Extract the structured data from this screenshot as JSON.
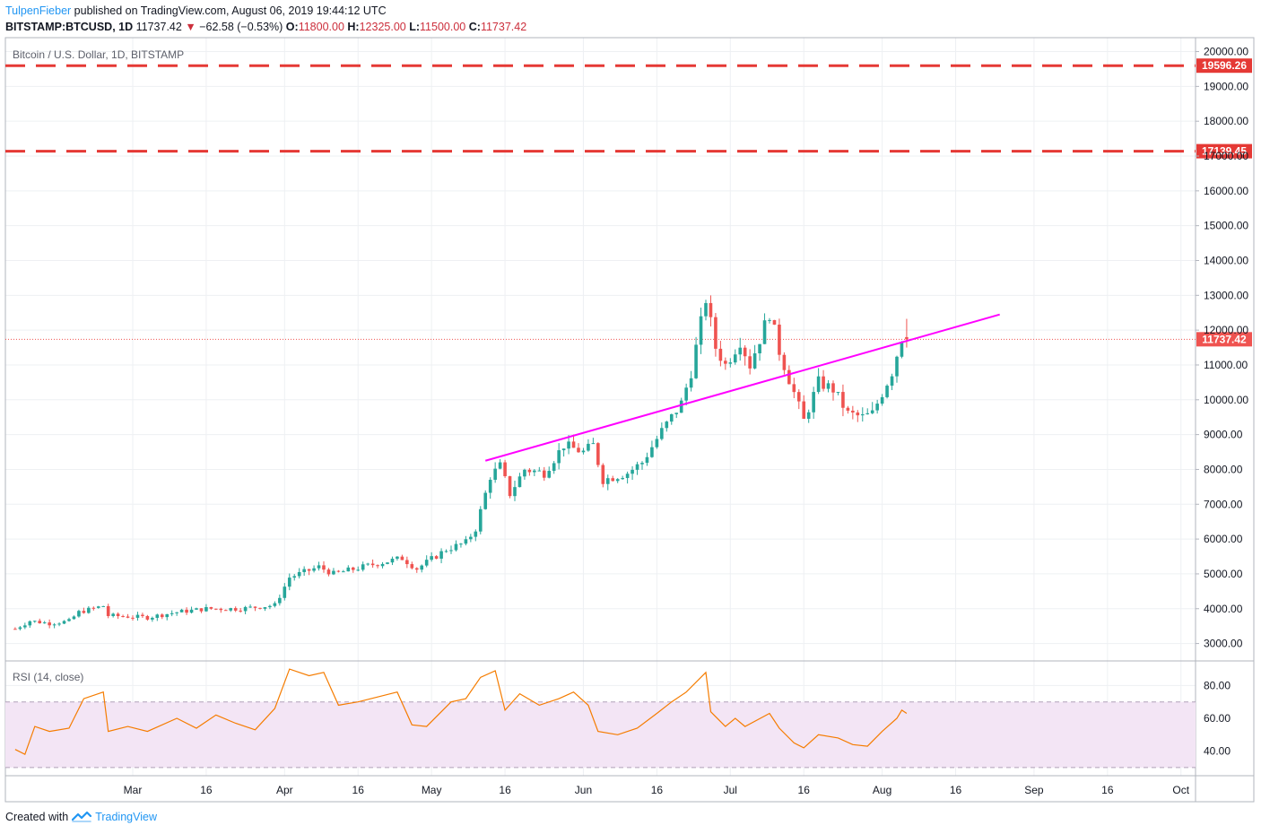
{
  "header": {
    "publisher": "TulpenFieber",
    "published_text": "published on TradingView.com, August 06, 2019 19:44:12 UTC",
    "symbol": "BITSTAMP:BTCUSD, 1D",
    "last": "11737.42",
    "change": "−62.58 (−0.53%)",
    "o_label": "O:",
    "o_val": "11800.00",
    "h_label": "H:",
    "h_val": "12325.00",
    "l_label": "L:",
    "l_val": "11500.00",
    "c_label": "C:",
    "c_val": "11737.42"
  },
  "footer": {
    "created_with": "Created with",
    "brand": "TradingView"
  },
  "colors": {
    "up": "#26a69a",
    "down": "#ef5350",
    "trend": "#ff00ff",
    "hline": "#e53935",
    "rsi": "#f57c00",
    "rsi_band": "#f3e5f5",
    "last_price": "#ef5350"
  },
  "chart_data": {
    "type": "candlestick",
    "title": "Bitcoin / U.S. Dollar, 1D, BITSTAMP",
    "x_ticks": [
      "Mar",
      "16",
      "Apr",
      "16",
      "May",
      "16",
      "Jun",
      "16",
      "Jul",
      "16",
      "Aug",
      "16",
      "Sep",
      "16",
      "Oct"
    ],
    "x_tick_dates": [
      "2019-03-01",
      "2019-03-16",
      "2019-04-01",
      "2019-04-16",
      "2019-05-01",
      "2019-05-16",
      "2019-06-01",
      "2019-06-16",
      "2019-07-01",
      "2019-07-16",
      "2019-08-01",
      "2019-08-16",
      "2019-09-01",
      "2019-09-16",
      "2019-10-01"
    ],
    "y_ticks": [
      "3000.00",
      "4000.00",
      "5000.00",
      "6000.00",
      "7000.00",
      "8000.00",
      "9000.00",
      "10000.00",
      "11000.00",
      "12000.00",
      "13000.00",
      "14000.00",
      "15000.00",
      "16000.00",
      "17000.00",
      "18000.00",
      "19000.00",
      "20000.00"
    ],
    "y_range": [
      2500,
      20400
    ],
    "horizontal_lines": [
      {
        "value": 19596.26,
        "label": "19596.26"
      },
      {
        "value": 17139.45,
        "label": "17139.45"
      }
    ],
    "last_price": {
      "value": 11737.42,
      "label": "11737.42"
    },
    "trendline": {
      "start": [
        "2019-05-12",
        8250
      ],
      "end": [
        "2019-08-25",
        12450
      ]
    },
    "close_points": [
      [
        "2019-02-05",
        3420
      ],
      [
        "2019-02-08",
        3650
      ],
      [
        "2019-02-12",
        3580
      ],
      [
        "2019-02-16",
        3640
      ],
      [
        "2019-02-18",
        3900
      ],
      [
        "2019-02-23",
        4080
      ],
      [
        "2019-02-24",
        3800
      ],
      [
        "2019-03-04",
        3750
      ],
      [
        "2019-03-10",
        3900
      ],
      [
        "2019-03-16",
        4000
      ],
      [
        "2019-03-23",
        4000
      ],
      [
        "2019-03-30",
        4100
      ],
      [
        "2019-04-02",
        4900
      ],
      [
        "2019-04-08",
        5200
      ],
      [
        "2019-04-11",
        5000
      ],
      [
        "2019-04-20",
        5300
      ],
      [
        "2019-04-25",
        5450
      ],
      [
        "2019-04-28",
        5150
      ],
      [
        "2019-05-04",
        5700
      ],
      [
        "2019-05-08",
        5900
      ],
      [
        "2019-05-10",
        6300
      ],
      [
        "2019-05-13",
        7800
      ],
      [
        "2019-05-15",
        8100
      ],
      [
        "2019-05-17",
        7300
      ],
      [
        "2019-05-20",
        8000
      ],
      [
        "2019-05-24",
        7900
      ],
      [
        "2019-05-28",
        8700
      ],
      [
        "2019-06-01",
        8500
      ],
      [
        "2019-06-03",
        8700
      ],
      [
        "2019-06-05",
        7700
      ],
      [
        "2019-06-10",
        7900
      ],
      [
        "2019-06-13",
        8200
      ],
      [
        "2019-06-17",
        9100
      ],
      [
        "2019-06-21",
        9900
      ],
      [
        "2019-06-23",
        10800
      ],
      [
        "2019-06-26",
        12900
      ],
      [
        "2019-06-28",
        11500
      ],
      [
        "2019-06-30",
        11000
      ],
      [
        "2019-07-03",
        11700
      ],
      [
        "2019-07-05",
        11000
      ],
      [
        "2019-07-09",
        12500
      ],
      [
        "2019-07-11",
        11400
      ],
      [
        "2019-07-14",
        10200
      ],
      [
        "2019-07-16",
        9400
      ],
      [
        "2019-07-19",
        10500
      ],
      [
        "2019-07-22",
        10300
      ],
      [
        "2019-07-25",
        9600
      ],
      [
        "2019-07-28",
        9500
      ],
      [
        "2019-07-30",
        9600
      ],
      [
        "2019-08-03",
        10800
      ],
      [
        "2019-08-05",
        11800
      ],
      [
        "2019-08-06",
        11737
      ]
    ],
    "rsi": {
      "label": "RSI (14, close)",
      "y_ticks": [
        "40.00",
        "60.00",
        "80.00"
      ],
      "y_range": [
        25,
        95
      ],
      "band": [
        30,
        70
      ],
      "points": [
        [
          "2019-02-05",
          41
        ],
        [
          "2019-02-07",
          38
        ],
        [
          "2019-02-09",
          55
        ],
        [
          "2019-02-12",
          52
        ],
        [
          "2019-02-16",
          54
        ],
        [
          "2019-02-19",
          72
        ],
        [
          "2019-02-23",
          76
        ],
        [
          "2019-02-24",
          52
        ],
        [
          "2019-02-28",
          55
        ],
        [
          "2019-03-04",
          52
        ],
        [
          "2019-03-10",
          60
        ],
        [
          "2019-03-14",
          54
        ],
        [
          "2019-03-18",
          62
        ],
        [
          "2019-03-22",
          57
        ],
        [
          "2019-03-26",
          53
        ],
        [
          "2019-03-30",
          66
        ],
        [
          "2019-04-02",
          90
        ],
        [
          "2019-04-06",
          86
        ],
        [
          "2019-04-09",
          88
        ],
        [
          "2019-04-12",
          68
        ],
        [
          "2019-04-16",
          70
        ],
        [
          "2019-04-20",
          73
        ],
        [
          "2019-04-24",
          76
        ],
        [
          "2019-04-27",
          56
        ],
        [
          "2019-04-30",
          55
        ],
        [
          "2019-05-05",
          70
        ],
        [
          "2019-05-08",
          72
        ],
        [
          "2019-05-11",
          85
        ],
        [
          "2019-05-14",
          89
        ],
        [
          "2019-05-16",
          65
        ],
        [
          "2019-05-19",
          75
        ],
        [
          "2019-05-23",
          68
        ],
        [
          "2019-05-27",
          72
        ],
        [
          "2019-05-30",
          76
        ],
        [
          "2019-06-02",
          68
        ],
        [
          "2019-06-04",
          52
        ],
        [
          "2019-06-08",
          50
        ],
        [
          "2019-06-12",
          54
        ],
        [
          "2019-06-16",
          63
        ],
        [
          "2019-06-19",
          70
        ],
        [
          "2019-06-22",
          76
        ],
        [
          "2019-06-26",
          88
        ],
        [
          "2019-06-27",
          64
        ],
        [
          "2019-06-30",
          55
        ],
        [
          "2019-07-02",
          60
        ],
        [
          "2019-07-04",
          55
        ],
        [
          "2019-07-09",
          63
        ],
        [
          "2019-07-11",
          54
        ],
        [
          "2019-07-14",
          45
        ],
        [
          "2019-07-16",
          42
        ],
        [
          "2019-07-19",
          50
        ],
        [
          "2019-07-23",
          48
        ],
        [
          "2019-07-26",
          44
        ],
        [
          "2019-07-29",
          43
        ],
        [
          "2019-08-01",
          52
        ],
        [
          "2019-08-04",
          60
        ],
        [
          "2019-08-05",
          65
        ],
        [
          "2019-08-06",
          63
        ]
      ]
    }
  }
}
